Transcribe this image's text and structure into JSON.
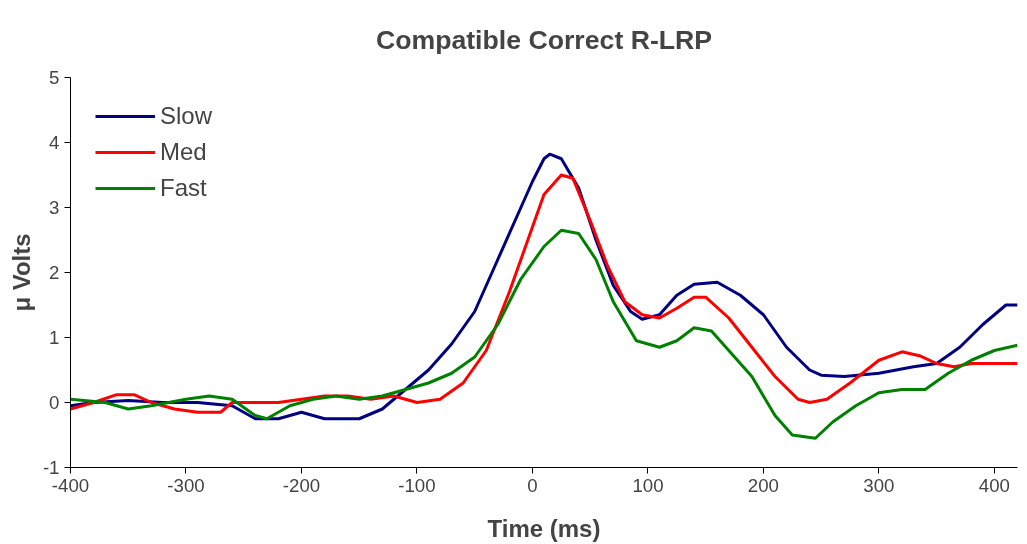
{
  "chart_data": {
    "type": "line",
    "title": "Compatible Correct R-LRP",
    "xlabel": "Time (ms)",
    "ylabel": "μ Volts",
    "xlim": [
      -400,
      420
    ],
    "xticks": [
      -400,
      -300,
      -200,
      -100,
      0,
      100,
      200,
      300,
      400
    ],
    "ylim": [
      -1,
      5
    ],
    "yticks": [
      -1,
      0,
      1,
      2,
      3,
      4,
      5
    ],
    "grid": false,
    "legend": "top left",
    "marker": "none",
    "line_style": "solid",
    "series": [
      {
        "name": "Slow",
        "color": "#000080",
        "x": [
          -400,
          -380,
          -350,
          -320,
          -290,
          -260,
          -240,
          -220,
          -200,
          -180,
          -150,
          -130,
          -110,
          -90,
          -70,
          -50,
          -30,
          -10,
          0,
          10,
          15,
          25,
          40,
          55,
          70,
          85,
          95,
          110,
          125,
          140,
          160,
          180,
          200,
          220,
          240,
          250,
          270,
          300,
          330,
          350,
          370,
          390,
          410,
          420
        ],
        "values": [
          -0.05,
          0,
          0.03,
          0,
          0,
          -0.05,
          -0.25,
          -0.25,
          -0.15,
          -0.25,
          -0.25,
          -0.1,
          0.2,
          0.5,
          0.9,
          1.4,
          2.2,
          3.0,
          3.4,
          3.75,
          3.82,
          3.75,
          3.3,
          2.5,
          1.8,
          1.4,
          1.28,
          1.35,
          1.65,
          1.82,
          1.85,
          1.65,
          1.35,
          0.85,
          0.5,
          0.42,
          0.4,
          0.45,
          0.55,
          0.6,
          0.85,
          1.2,
          1.5,
          1.5
        ]
      },
      {
        "name": "Med",
        "color": "#ff0000",
        "x": [
          -400,
          -380,
          -360,
          -345,
          -330,
          -310,
          -290,
          -270,
          -260,
          -240,
          -220,
          -200,
          -180,
          -160,
          -140,
          -120,
          -100,
          -80,
          -60,
          -40,
          -20,
          0,
          10,
          25,
          35,
          50,
          65,
          80,
          95,
          110,
          125,
          140,
          150,
          170,
          190,
          210,
          230,
          240,
          255,
          275,
          300,
          320,
          335,
          350,
          365,
          380,
          420
        ],
        "values": [
          -0.1,
          0,
          0.12,
          0.12,
          0,
          -0.1,
          -0.15,
          -0.15,
          0,
          0,
          0,
          0.05,
          0.1,
          0.1,
          0.05,
          0.1,
          0,
          0.05,
          0.3,
          0.8,
          1.7,
          2.7,
          3.2,
          3.5,
          3.45,
          2.8,
          2.1,
          1.55,
          1.35,
          1.3,
          1.45,
          1.62,
          1.62,
          1.3,
          0.85,
          0.4,
          0.05,
          0,
          0.05,
          0.3,
          0.65,
          0.78,
          0.72,
          0.6,
          0.55,
          0.6,
          0.6
        ]
      },
      {
        "name": "Fast",
        "color": "#008000",
        "x": [
          -400,
          -370,
          -350,
          -330,
          -300,
          -280,
          -260,
          -240,
          -230,
          -210,
          -190,
          -170,
          -150,
          -130,
          -110,
          -90,
          -70,
          -50,
          -30,
          -10,
          10,
          25,
          40,
          55,
          70,
          90,
          110,
          125,
          140,
          155,
          170,
          190,
          210,
          225,
          245,
          260,
          280,
          300,
          320,
          340,
          360,
          380,
          400,
          420
        ],
        "values": [
          0.05,
          0,
          -0.1,
          -0.05,
          0.05,
          0.1,
          0.05,
          -0.2,
          -0.25,
          -0.05,
          0.05,
          0.1,
          0.05,
          0.1,
          0.2,
          0.3,
          0.45,
          0.7,
          1.2,
          1.9,
          2.4,
          2.65,
          2.6,
          2.2,
          1.55,
          0.95,
          0.85,
          0.95,
          1.15,
          1.1,
          0.8,
          0.4,
          -0.2,
          -0.5,
          -0.55,
          -0.3,
          -0.05,
          0.15,
          0.2,
          0.2,
          0.45,
          0.65,
          0.8,
          0.88
        ]
      }
    ]
  }
}
